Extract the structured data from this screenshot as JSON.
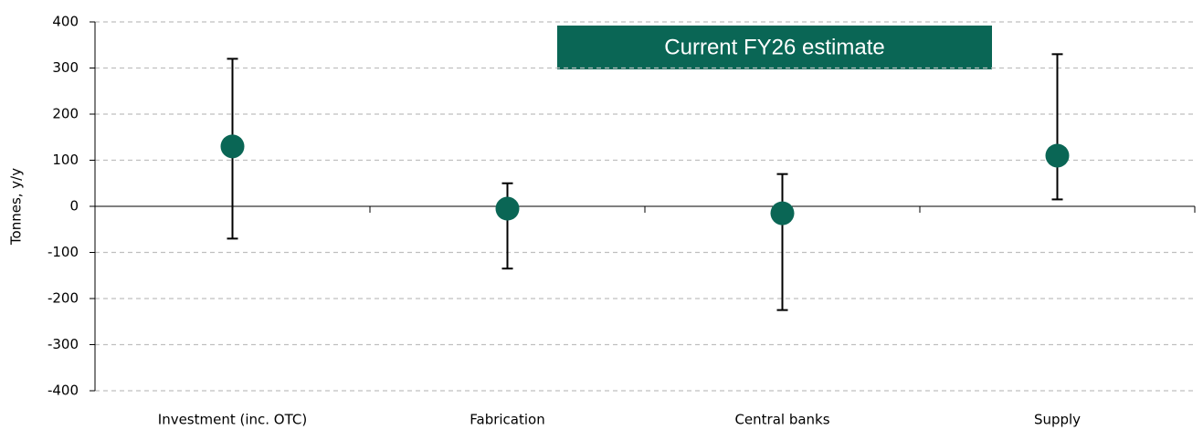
{
  "chart_data": {
    "type": "errorbar",
    "y_label": "Tonnes, y/y",
    "annotation": "Current FY26 estimate",
    "categories": [
      "Investment (inc. OTC)",
      "Fabrication",
      "Central banks",
      "Supply"
    ],
    "values": [
      130,
      -5,
      -15,
      110
    ],
    "upper": [
      320,
      50,
      70,
      330
    ],
    "lower": [
      -70,
      -135,
      -225,
      15
    ],
    "color": "#0a6655",
    "ylim": [
      -400,
      400
    ],
    "yticks": [
      -400,
      -300,
      -200,
      -100,
      0,
      100,
      200,
      300,
      400
    ],
    "grid": true
  }
}
